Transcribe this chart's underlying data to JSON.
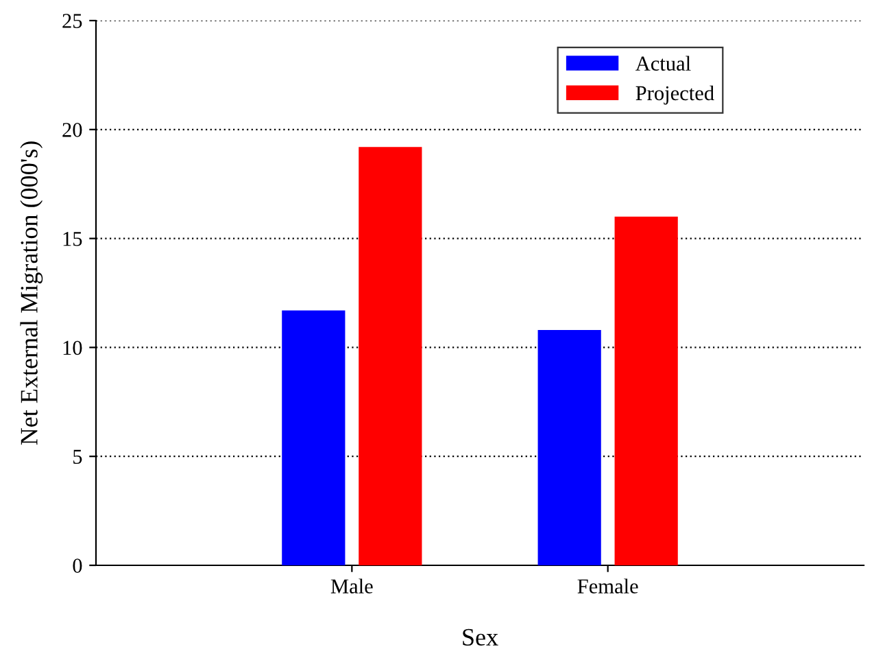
{
  "chart_data": {
    "type": "bar",
    "xlabel": "Sex",
    "ylabel": "Net External Migration (000's)",
    "categories": [
      "Male",
      "Female"
    ],
    "series": [
      {
        "name": "Actual",
        "color": "#0000ff",
        "values": [
          11.7,
          10.8
        ]
      },
      {
        "name": "Projected",
        "color": "#ff0000",
        "values": [
          19.2,
          16.0
        ]
      }
    ],
    "ylim": [
      0,
      25
    ],
    "yticks": [
      0,
      5,
      10,
      15,
      20,
      25
    ],
    "grid": "y",
    "legend": "top right"
  }
}
